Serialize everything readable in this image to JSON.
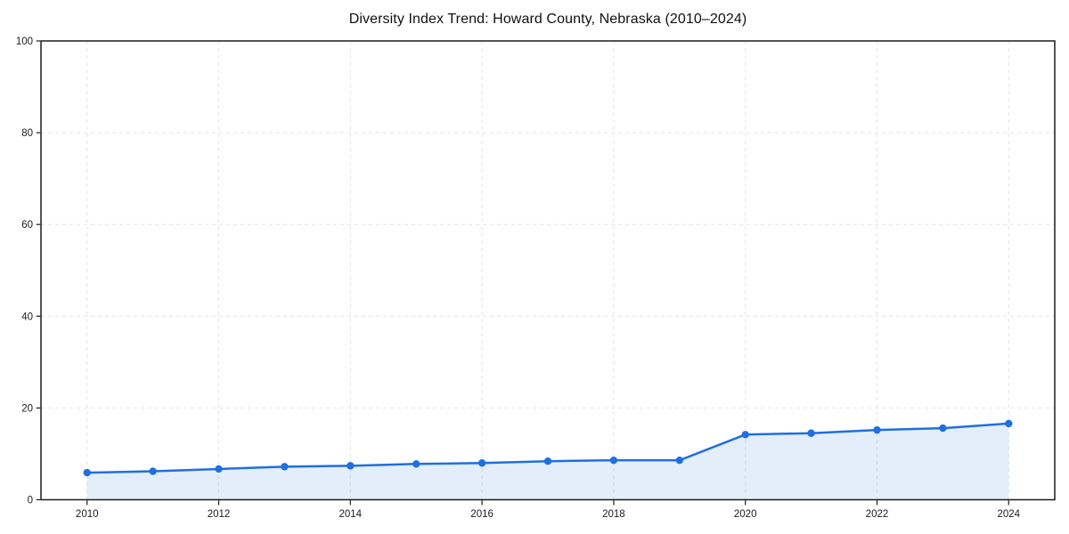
{
  "chart_data": {
    "type": "area",
    "title": "Diversity Index Trend: Howard County, Nebraska (2010–2024)",
    "xlabel": "",
    "ylabel": "",
    "x": [
      2010,
      2011,
      2012,
      2013,
      2014,
      2015,
      2016,
      2017,
      2018,
      2019,
      2020,
      2021,
      2022,
      2023,
      2024
    ],
    "values": [
      5.9,
      6.2,
      6.7,
      7.2,
      7.4,
      7.8,
      8.0,
      8.4,
      8.6,
      8.6,
      14.2,
      14.5,
      15.2,
      15.6,
      16.6
    ],
    "series_name": "Diversity Index",
    "xlim": [
      2009.3,
      2024.7
    ],
    "ylim": [
      0,
      100
    ],
    "xticks": [
      2010,
      2012,
      2014,
      2016,
      2018,
      2020,
      2022,
      2024
    ],
    "yticks": [
      0,
      20,
      40,
      60,
      80,
      100
    ],
    "grid": true,
    "grid_style": "dashed",
    "legend": false,
    "marker": "circle",
    "colors": {
      "line": "#1f6fe0",
      "marker": "#1f6fe0",
      "fill": "rgba(32,113,226,0.12)",
      "grid": "#e3e3e3",
      "axis": "#1b1b1b",
      "tick_label": "#1c1c1c",
      "title": "#111111",
      "background": "#ffffff"
    }
  }
}
